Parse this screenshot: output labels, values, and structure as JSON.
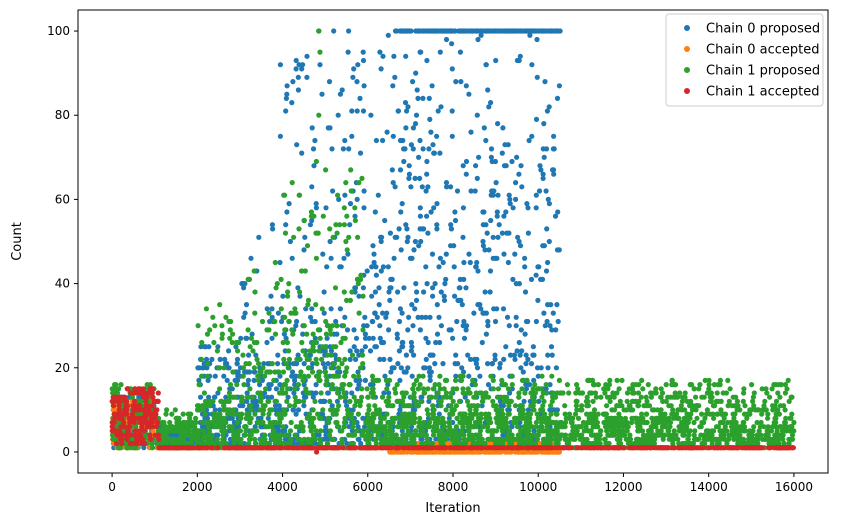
{
  "chart_data": {
    "type": "scatter",
    "title": "",
    "xlabel": "Iteration",
    "ylabel": "Count",
    "xlim": [
      -800,
      16800
    ],
    "ylim": [
      -5,
      105
    ],
    "x_ticks": [
      0,
      2000,
      4000,
      6000,
      8000,
      10000,
      12000,
      14000,
      16000
    ],
    "y_ticks": [
      0,
      20,
      40,
      60,
      80,
      100
    ],
    "grid": false,
    "legend_position": "top-right",
    "series": [
      {
        "name": "Chain 0 proposed",
        "color": "#1f77b4",
        "segments": [
          {
            "x": [
              0,
              1000
            ],
            "y": [
              1,
              14
            ],
            "typical": 7
          },
          {
            "x": [
              1100,
              2000
            ],
            "y": [
              1,
              6
            ],
            "typical": 2
          },
          {
            "x": [
              2000,
              3000
            ],
            "y": [
              1,
              25
            ],
            "typical": 5
          },
          {
            "x": [
              3000,
              4000
            ],
            "y": [
              1,
              55
            ],
            "typical": 10
          },
          {
            "x": [
              4000,
              6000
            ],
            "y": [
              1,
              100
            ],
            "typical": 15
          },
          {
            "x": [
              6000,
              6600
            ],
            "y": [
              3,
              100
            ],
            "typical": 22
          },
          {
            "x": [
              6600,
              10500
            ],
            "y": [
              3,
              100
            ],
            "typical": 40
          }
        ],
        "highlights": [
          {
            "x": 4100,
            "y": 85
          },
          {
            "x": 3950,
            "y": 92
          },
          {
            "x": 4450,
            "y": 91
          },
          {
            "x": 4850,
            "y": 100
          },
          {
            "x": 5200,
            "y": 100
          },
          {
            "x": 5550,
            "y": 100
          },
          {
            "x": 3950,
            "y": 75
          },
          {
            "x": 5400,
            "y": 86
          }
        ],
        "cap_band": {
          "x": [
            6650,
            10550
          ],
          "y": 100
        }
      },
      {
        "name": "Chain 0 accepted",
        "color": "#ff7f0e",
        "segments": [
          {
            "x": [
              0,
              1000
            ],
            "y": [
              1,
              12
            ],
            "typical": 6
          },
          {
            "x": [
              1050,
              6500
            ],
            "y": [
              1,
              1
            ],
            "typical": 1
          },
          {
            "x": [
              6500,
              10500
            ],
            "y": [
              0,
              2
            ],
            "typical": 1
          }
        ]
      },
      {
        "name": "Chain 1 proposed",
        "color": "#2ca02c",
        "segments": [
          {
            "x": [
              0,
              1000
            ],
            "y": [
              1,
              16
            ],
            "typical": 8
          },
          {
            "x": [
              1050,
              2000
            ],
            "y": [
              1,
              10
            ],
            "typical": 3
          },
          {
            "x": [
              2000,
              3000
            ],
            "y": [
              1,
              35
            ],
            "typical": 6
          },
          {
            "x": [
              3000,
              4000
            ],
            "y": [
              1,
              45
            ],
            "typical": 10
          },
          {
            "x": [
              4000,
              5000
            ],
            "y": [
              1,
              70
            ],
            "typical": 14
          },
          {
            "x": [
              5000,
              5900
            ],
            "y": [
              1,
              68
            ],
            "typical": 15
          },
          {
            "x": [
              5950,
              10500
            ],
            "y": [
              1,
              18
            ],
            "typical": 4
          },
          {
            "x": [
              10500,
              16000
            ],
            "y": [
              1,
              17
            ],
            "typical": 4
          }
        ],
        "highlights": [
          {
            "x": 4850,
            "y": 100
          },
          {
            "x": 4880,
            "y": 95
          },
          {
            "x": 4850,
            "y": 80
          },
          {
            "x": 5600,
            "y": 67
          },
          {
            "x": 11850,
            "y": 17
          },
          {
            "x": 3350,
            "y": 33
          }
        ]
      },
      {
        "name": "Chain 1 accepted",
        "color": "#d62728",
        "segments": [
          {
            "x": [
              0,
              1100
            ],
            "y": [
              2,
              15
            ],
            "typical": 7
          },
          {
            "x": [
              1100,
              16000
            ],
            "y": [
              1,
              1
            ],
            "typical": 1
          }
        ],
        "highlights": [
          {
            "x": 4800,
            "y": 0
          }
        ]
      }
    ]
  }
}
